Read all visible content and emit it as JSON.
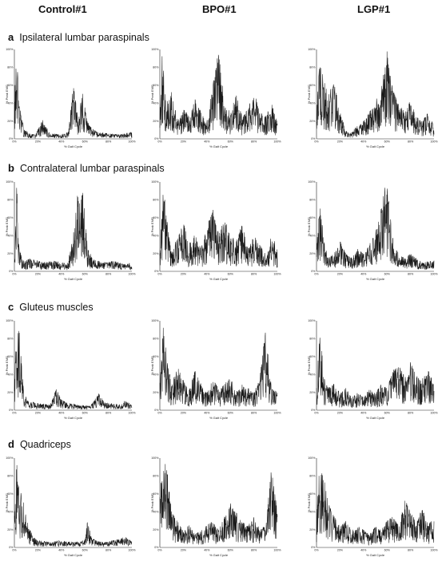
{
  "columns": [
    "Control#1",
    "BPO#1",
    "LGP#1"
  ],
  "rows": [
    {
      "letter": "a",
      "label": "Ipsilateral lumbar paraspinals"
    },
    {
      "letter": "b",
      "label": "Contralateral lumbar paraspinals"
    },
    {
      "letter": "c",
      "label": "Gluteus muscles"
    },
    {
      "letter": "d",
      "label": "Quadriceps"
    }
  ],
  "axis": {
    "ylabel": "% Peak EMG",
    "xlabel": "% Gait Cycle",
    "yticks": [
      "0%",
      "20%",
      "40%",
      "60%",
      "80%",
      "100%"
    ],
    "xticks": [
      "0%",
      "20%",
      "40%",
      "60%",
      "80%",
      "100%"
    ]
  },
  "chart_data": [
    {
      "type": "line",
      "row": "a",
      "column": "Control#1",
      "xlabel": "% Gait Cycle",
      "ylabel": "% Peak EMG",
      "xlim": [
        0,
        100
      ],
      "ylim": [
        0,
        100
      ],
      "series": [
        {
          "x": [
            0,
            2,
            4,
            8,
            12,
            18,
            24,
            30,
            40,
            46,
            50,
            54,
            58,
            62,
            66,
            70,
            80,
            90,
            100
          ],
          "values": [
            50,
            95,
            40,
            12,
            6,
            5,
            22,
            6,
            5,
            8,
            62,
            30,
            52,
            20,
            12,
            8,
            6,
            5,
            8
          ]
        }
      ]
    },
    {
      "type": "line",
      "row": "a",
      "column": "BPO#1",
      "xlabel": "% Gait Cycle",
      "ylabel": "% Peak EMG",
      "xlim": [
        0,
        100
      ],
      "ylim": [
        0,
        100
      ],
      "series": [
        {
          "x": [
            0,
            2,
            5,
            10,
            15,
            20,
            25,
            30,
            35,
            40,
            45,
            50,
            55,
            60,
            65,
            70,
            75,
            80,
            85,
            90,
            95,
            100
          ],
          "values": [
            30,
            98,
            40,
            55,
            20,
            35,
            25,
            45,
            30,
            20,
            60,
            100,
            40,
            30,
            50,
            25,
            35,
            60,
            30,
            25,
            40,
            20
          ]
        }
      ]
    },
    {
      "type": "line",
      "row": "a",
      "column": "LGP#1",
      "xlabel": "% Gait Cycle",
      "ylabel": "% Peak EMG",
      "xlim": [
        0,
        100
      ],
      "ylim": [
        0,
        100
      ],
      "series": [
        {
          "x": [
            0,
            3,
            6,
            10,
            15,
            20,
            25,
            30,
            35,
            40,
            45,
            50,
            55,
            60,
            65,
            70,
            75,
            80,
            85,
            90,
            95,
            100
          ],
          "values": [
            40,
            95,
            70,
            50,
            65,
            30,
            10,
            8,
            15,
            20,
            30,
            45,
            60,
            98,
            55,
            40,
            30,
            45,
            25,
            20,
            30,
            15
          ]
        }
      ]
    },
    {
      "type": "line",
      "row": "b",
      "column": "Control#1",
      "xlabel": "% Gait Cycle",
      "ylabel": "% Peak EMG",
      "xlim": [
        0,
        100
      ],
      "ylim": [
        0,
        100
      ],
      "series": [
        {
          "x": [
            0,
            2,
            4,
            8,
            15,
            25,
            35,
            45,
            50,
            54,
            56,
            58,
            62,
            66,
            75,
            85,
            95,
            100
          ],
          "values": [
            20,
            98,
            25,
            12,
            15,
            10,
            12,
            8,
            40,
            90,
            75,
            95,
            30,
            15,
            10,
            12,
            8,
            10
          ]
        }
      ]
    },
    {
      "type": "line",
      "row": "b",
      "column": "BPO#1",
      "xlabel": "% Gait Cycle",
      "ylabel": "% Peak EMG",
      "xlim": [
        0,
        100
      ],
      "ylim": [
        0,
        100
      ],
      "series": [
        {
          "x": [
            0,
            3,
            6,
            10,
            15,
            20,
            25,
            30,
            35,
            40,
            45,
            50,
            55,
            60,
            65,
            70,
            75,
            80,
            85,
            90,
            95,
            100
          ],
          "values": [
            30,
            95,
            60,
            20,
            40,
            55,
            30,
            45,
            25,
            50,
            70,
            45,
            60,
            40,
            35,
            55,
            25,
            40,
            30,
            20,
            45,
            25
          ]
        }
      ]
    },
    {
      "type": "line",
      "row": "b",
      "column": "LGP#1",
      "xlabel": "% Gait Cycle",
      "ylabel": "% Peak EMG",
      "xlim": [
        0,
        100
      ],
      "ylim": [
        0,
        100
      ],
      "series": [
        {
          "x": [
            0,
            3,
            6,
            10,
            15,
            20,
            25,
            30,
            35,
            40,
            45,
            50,
            55,
            58,
            60,
            63,
            66,
            70,
            75,
            80,
            90,
            100
          ],
          "values": [
            25,
            80,
            40,
            15,
            20,
            35,
            20,
            15,
            25,
            20,
            30,
            45,
            70,
            95,
            100,
            60,
            30,
            20,
            15,
            20,
            10,
            12
          ]
        }
      ]
    },
    {
      "type": "line",
      "row": "c",
      "column": "Control#1",
      "xlabel": "% Gait Cycle",
      "ylabel": "% Peak EMG",
      "xlim": [
        0,
        100
      ],
      "ylim": [
        0,
        100
      ],
      "series": [
        {
          "x": [
            0,
            2,
            4,
            6,
            8,
            12,
            20,
            30,
            36,
            40,
            45,
            55,
            65,
            72,
            76,
            80,
            90,
            95,
            100
          ],
          "values": [
            30,
            100,
            90,
            60,
            20,
            10,
            8,
            6,
            25,
            12,
            8,
            6,
            5,
            20,
            10,
            8,
            6,
            12,
            5
          ]
        }
      ]
    },
    {
      "type": "line",
      "row": "c",
      "column": "BPO#1",
      "xlabel": "% Gait Cycle",
      "ylabel": "% Peak EMG",
      "xlim": [
        0,
        100
      ],
      "ylim": [
        0,
        100
      ],
      "series": [
        {
          "x": [
            0,
            3,
            6,
            10,
            15,
            20,
            25,
            30,
            35,
            40,
            45,
            50,
            55,
            60,
            65,
            70,
            75,
            80,
            85,
            90,
            95,
            100
          ],
          "values": [
            40,
            100,
            60,
            30,
            50,
            35,
            25,
            45,
            30,
            20,
            35,
            25,
            30,
            40,
            20,
            30,
            25,
            20,
            35,
            95,
            25,
            20
          ]
        }
      ]
    },
    {
      "type": "line",
      "row": "c",
      "column": "LGP#1",
      "xlabel": "% Gait Cycle",
      "ylabel": "% Peak EMG",
      "xlim": [
        0,
        100
      ],
      "ylim": [
        0,
        100
      ],
      "series": [
        {
          "x": [
            0,
            3,
            6,
            10,
            15,
            20,
            25,
            30,
            35,
            40,
            45,
            50,
            55,
            60,
            65,
            70,
            75,
            80,
            85,
            90,
            95,
            100
          ],
          "values": [
            30,
            95,
            40,
            25,
            30,
            20,
            25,
            15,
            20,
            15,
            25,
            20,
            30,
            25,
            45,
            50,
            40,
            55,
            40,
            35,
            45,
            30
          ]
        }
      ]
    },
    {
      "type": "line",
      "row": "d",
      "column": "Control#1",
      "xlabel": "% Gait Cycle",
      "ylabel": "% Peak EMG",
      "xlim": [
        0,
        100
      ],
      "ylim": [
        0,
        100
      ],
      "series": [
        {
          "x": [
            0,
            2,
            4,
            6,
            8,
            12,
            16,
            20,
            30,
            40,
            50,
            60,
            62,
            66,
            75,
            85,
            95,
            100
          ],
          "values": [
            40,
            95,
            70,
            60,
            50,
            25,
            12,
            8,
            6,
            8,
            6,
            8,
            30,
            10,
            6,
            8,
            12,
            6
          ]
        }
      ]
    },
    {
      "type": "line",
      "row": "d",
      "column": "BPO#1",
      "xlabel": "% Gait Cycle",
      "ylabel": "% Peak EMG",
      "xlim": [
        0,
        100
      ],
      "ylim": [
        0,
        100
      ],
      "series": [
        {
          "x": [
            0,
            3,
            6,
            10,
            15,
            20,
            25,
            30,
            35,
            40,
            45,
            50,
            55,
            60,
            65,
            70,
            75,
            80,
            85,
            90,
            95,
            100
          ],
          "values": [
            60,
            100,
            90,
            40,
            30,
            20,
            25,
            15,
            20,
            25,
            30,
            20,
            35,
            50,
            40,
            30,
            25,
            35,
            20,
            25,
            90,
            40
          ]
        }
      ]
    },
    {
      "type": "line",
      "row": "d",
      "column": "LGP#1",
      "xlabel": "% Gait Cycle",
      "ylabel": "% Peak EMG",
      "xlim": [
        0,
        100
      ],
      "ylim": [
        0,
        100
      ],
      "series": [
        {
          "x": [
            0,
            3,
            6,
            10,
            15,
            20,
            25,
            30,
            35,
            40,
            45,
            50,
            55,
            60,
            65,
            70,
            75,
            80,
            85,
            90,
            95,
            100
          ],
          "values": [
            40,
            100,
            80,
            50,
            35,
            25,
            30,
            20,
            25,
            20,
            15,
            25,
            20,
            30,
            35,
            25,
            55,
            40,
            30,
            45,
            25,
            35
          ]
        }
      ]
    }
  ]
}
